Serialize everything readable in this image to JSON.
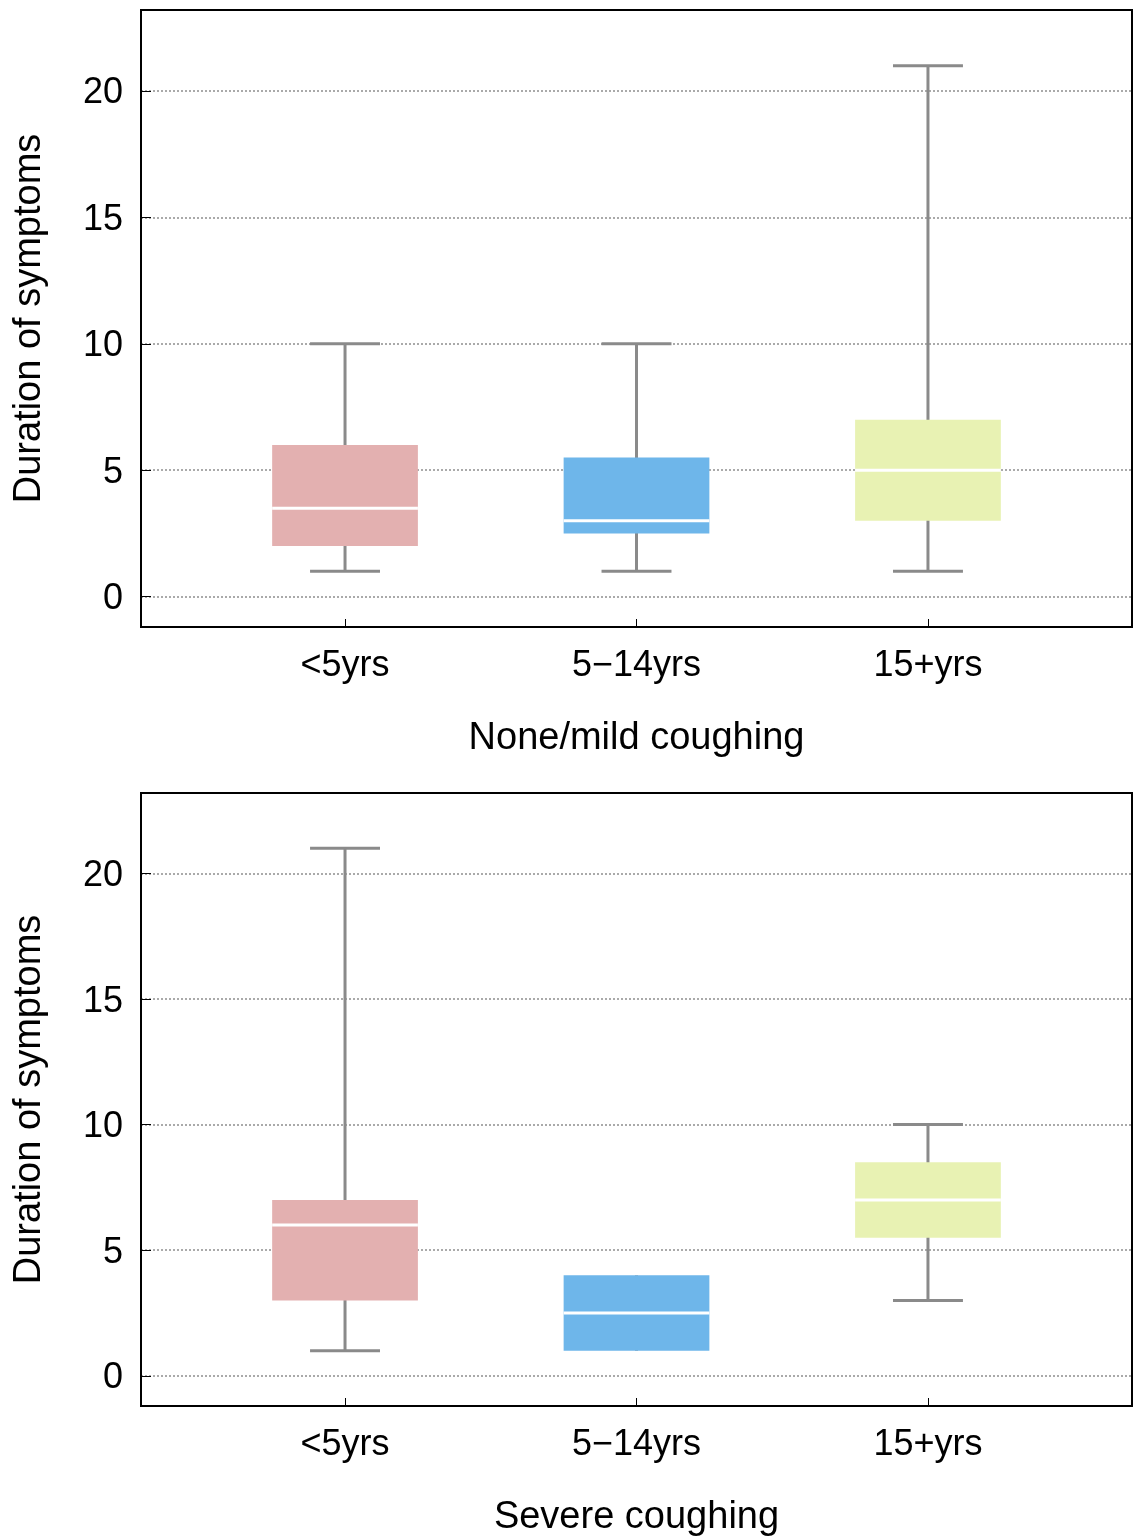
{
  "chart_data": [
    {
      "type": "box",
      "xlabel": "None/mild coughing",
      "ylabel": "Duration of symptoms",
      "categories": [
        "<5yrs",
        "5−14yrs",
        "15+yrs"
      ],
      "colors": [
        "#e3b0b0",
        "#6eb6ea",
        "#e8f2b3"
      ],
      "ylim": [
        -1.2,
        23.2
      ],
      "yticks": [
        0,
        5,
        10,
        15,
        20
      ],
      "grid": "y",
      "boxes": [
        {
          "low": 1,
          "q1": 2,
          "median": 3.5,
          "q3": 6,
          "high": 10
        },
        {
          "low": 1,
          "q1": 2.5,
          "median": 3,
          "q3": 5.5,
          "high": 10
        },
        {
          "low": 1,
          "q1": 3,
          "median": 5,
          "q3": 7,
          "high": 21
        }
      ]
    },
    {
      "type": "box",
      "xlabel": "Severe coughing",
      "ylabel": "Duration of symptoms",
      "categories": [
        "<5yrs",
        "5−14yrs",
        "15+yrs"
      ],
      "colors": [
        "#e3b0b0",
        "#6eb6ea",
        "#e8f2b3"
      ],
      "ylim": [
        -1.2,
        23.2
      ],
      "yticks": [
        0,
        5,
        10,
        15,
        20
      ],
      "grid": "y",
      "boxes": [
        {
          "low": 1,
          "q1": 3,
          "median": 6,
          "q3": 7,
          "high": 21
        },
        {
          "low": 1,
          "q1": 1,
          "median": 2.5,
          "q3": 4,
          "high": 4
        },
        {
          "low": 3,
          "q1": 5.5,
          "median": 7,
          "q3": 8.5,
          "high": 10
        }
      ]
    }
  ]
}
